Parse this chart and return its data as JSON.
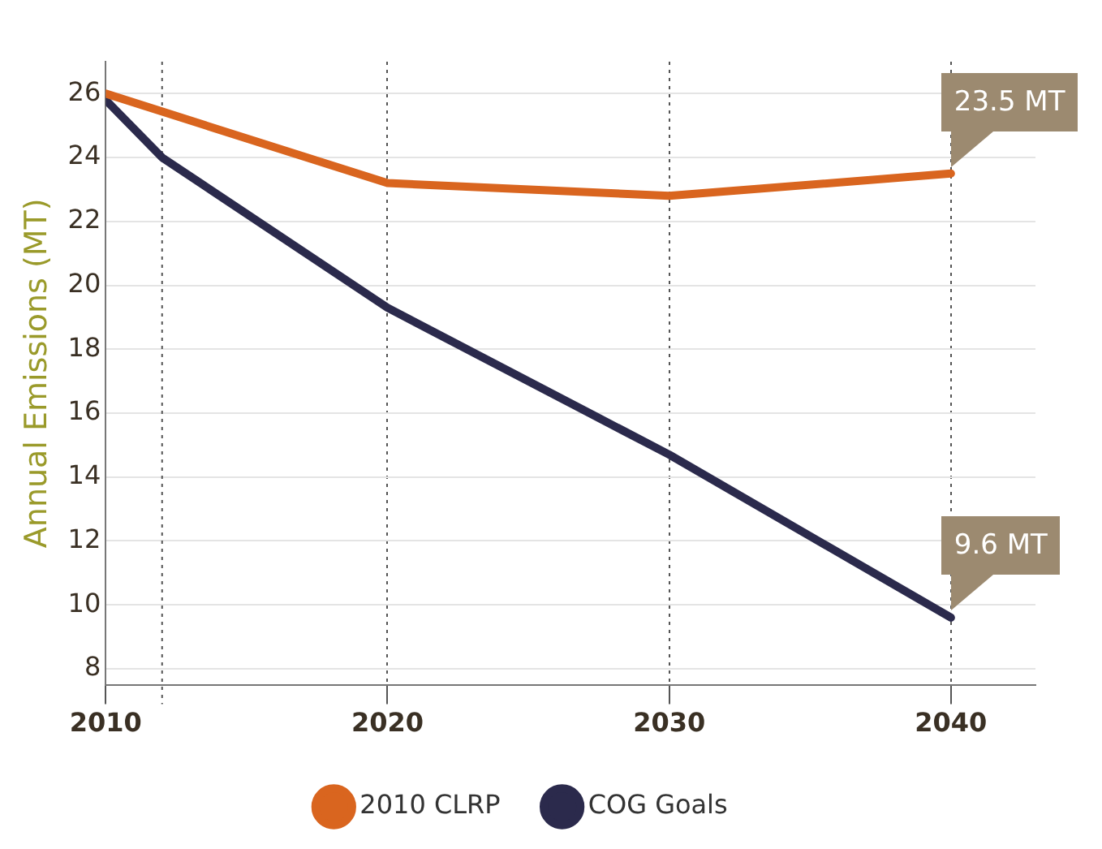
{
  "chart_data": {
    "type": "line",
    "ylabel": "Annual Emissions (MT)",
    "series": [
      {
        "name": "2010 CLRP",
        "color": "#d9651f",
        "x": [
          2010,
          2020,
          2030,
          2040
        ],
        "values": [
          26,
          23.2,
          22.8,
          23.5
        ]
      },
      {
        "name": "COG Goals",
        "color": "#2b2a4c",
        "x": [
          2010,
          2012,
          2020,
          2030,
          2040
        ],
        "values": [
          25.8,
          24,
          19.3,
          14.7,
          9.6
        ]
      }
    ],
    "xlim": [
      2010,
      2043
    ],
    "xticks": [
      2010,
      2020,
      2030,
      2040
    ],
    "ylim": [
      7.5,
      27
    ],
    "yticks": [
      8,
      10,
      12,
      14,
      16,
      18,
      20,
      22,
      24,
      26
    ],
    "grid": true,
    "legend": "bottom",
    "marker": "none",
    "line_style": "solid",
    "ref_lines": [
      {
        "axis": "x",
        "value": 2012,
        "line_style": "dotted"
      }
    ],
    "annotations": [
      {
        "text": "23.5 MT",
        "x": 2040,
        "y": 23.5
      },
      {
        "text": "9.6 MT",
        "x": 2040,
        "y": 9.6
      }
    ]
  }
}
